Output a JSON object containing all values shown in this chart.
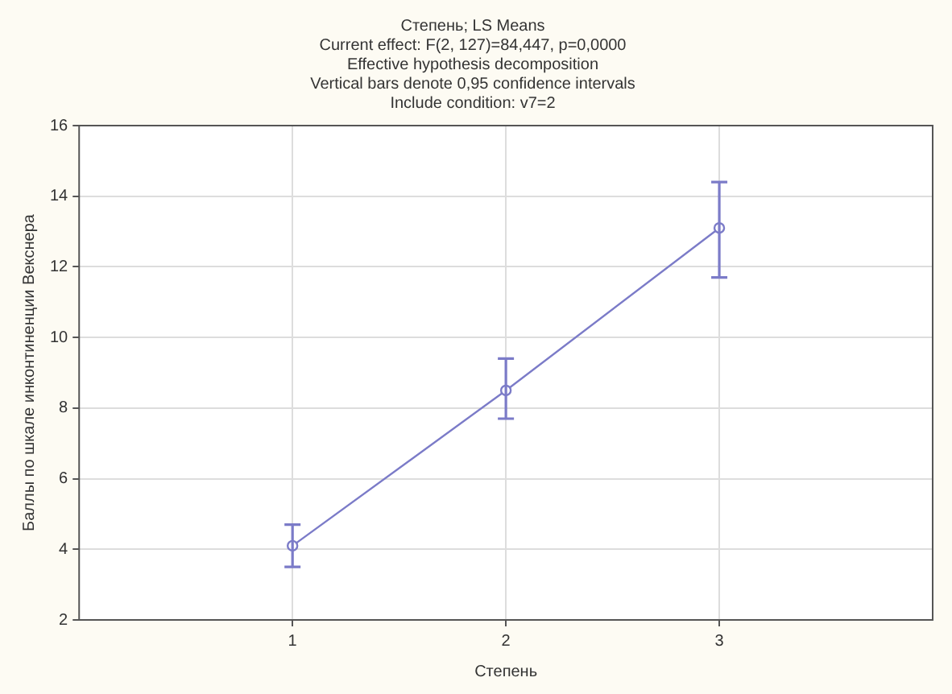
{
  "chart_data": {
    "type": "line",
    "title": [
      "Степень; LS Means",
      "Current effect: F(2, 127)=84,447, p=0,0000",
      "Effective hypothesis decomposition",
      "Vertical bars denote 0,95 confidence intervals",
      "Include condition: v7=2"
    ],
    "xlabel": "Степень",
    "ylabel": "Баллы по шкале инконтиненции Векснера",
    "x": [
      1,
      2,
      3
    ],
    "xlim": [
      0,
      4
    ],
    "xticks": [
      1,
      2,
      3
    ],
    "ylim": [
      2,
      16
    ],
    "yticks": [
      2,
      4,
      6,
      8,
      10,
      12,
      14,
      16
    ],
    "series": [
      {
        "color": "#7b7bc8",
        "values": [
          4.1,
          8.5,
          13.1
        ],
        "errors": [
          [
            3.5,
            4.7
          ],
          [
            7.7,
            9.4
          ],
          [
            11.7,
            14.4
          ]
        ]
      }
    ],
    "grid": true,
    "legend": false,
    "marker": "circle",
    "line_style": "solid"
  }
}
